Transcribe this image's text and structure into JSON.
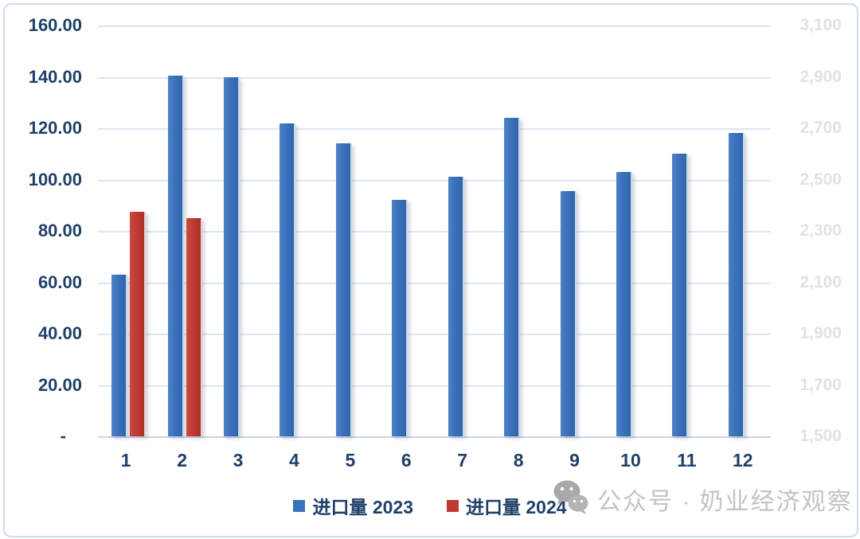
{
  "chart_data": {
    "type": "bar",
    "categories": [
      "1",
      "2",
      "3",
      "4",
      "5",
      "6",
      "7",
      "8",
      "9",
      "10",
      "11",
      "12"
    ],
    "series": [
      {
        "name": "进口量 2023",
        "color": "#3a72bc",
        "values": [
          63,
          140.5,
          140,
          122,
          114,
          92,
          101,
          124,
          95.5,
          103,
          110,
          118
        ]
      },
      {
        "name": "进口量 2024",
        "color": "#c03a32",
        "values": [
          87.5,
          85,
          null,
          null,
          null,
          null,
          null,
          null,
          null,
          null,
          null,
          null
        ]
      }
    ],
    "left_axis": {
      "ticks": [
        "160.00",
        "140.00",
        "120.00",
        "100.00",
        "80.00",
        "60.00",
        "40.00",
        "20.00",
        "-"
      ],
      "range": [
        0,
        160
      ]
    },
    "right_axis": {
      "ticks": [
        "3,100",
        "2,900",
        "2,700",
        "2,500",
        "2,300",
        "2,100",
        "1,900",
        "1,700",
        "1,500"
      ],
      "range": [
        1500,
        3100
      ]
    },
    "grid": true,
    "legend_position": "bottom",
    "title": ""
  },
  "legend": {
    "item_2023": "进口量 2023",
    "item_2024": "进口量 2024"
  },
  "watermark": {
    "icon": "wechat-icon",
    "text": "公众号 · 奶业经济观察"
  },
  "colors": {
    "series_2023": "#3a72bc",
    "series_2024": "#c03a32",
    "axis_text": "#1f4068",
    "right_axis_text": "#e2e2e2",
    "gridline": "#dde6f4",
    "watermark": "#c3c3c3",
    "card_border": "#ccdcf0"
  }
}
